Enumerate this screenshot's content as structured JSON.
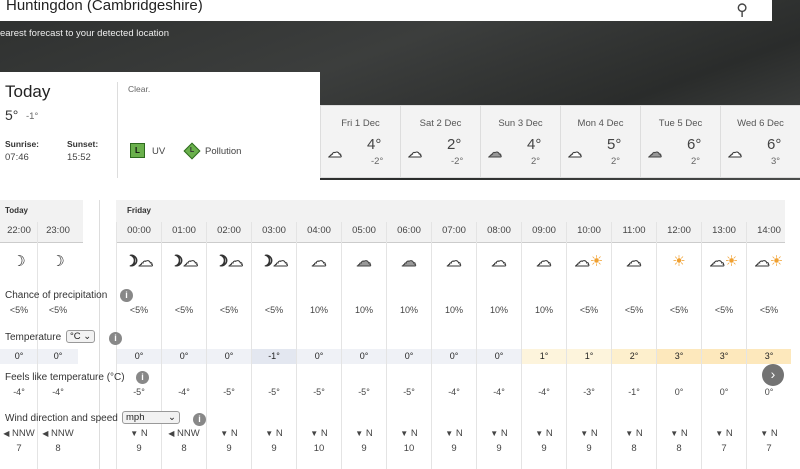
{
  "location": "Huntingdon (Cambridgeshire)",
  "nearest_text": "earest forecast to your detected location",
  "today": {
    "title": "Today",
    "high": "5°",
    "low": "-1°",
    "sunrise_label": "Sunrise:",
    "sunrise": "07:46",
    "sunset_label": "Sunset:",
    "sunset": "15:52",
    "summary": "Clear.",
    "uv_level": "L",
    "uv_label": "UV",
    "pollution_level": "L",
    "pollution_label": "Pollution",
    "uv_color": "#6ab04c"
  },
  "days": [
    {
      "date": "Fri 1 Dec",
      "high": "4°",
      "low": "-2°",
      "icon": "cloud"
    },
    {
      "date": "Sat 2 Dec",
      "high": "2°",
      "low": "-2°",
      "icon": "cloud"
    },
    {
      "date": "Sun 3 Dec",
      "high": "4°",
      "low": "2°",
      "icon": "grey-cloud"
    },
    {
      "date": "Mon 4 Dec",
      "high": "5°",
      "low": "2°",
      "icon": "cloud"
    },
    {
      "date": "Tue 5 Dec",
      "high": "6°",
      "low": "2°",
      "icon": "grey-cloud"
    },
    {
      "date": "Wed 6 Dec",
      "high": "6°",
      "low": "3°",
      "icon": "cloud"
    }
  ],
  "hourly": {
    "today_label": "Today",
    "next_label": "Friday",
    "precip_label": "Chance of precipitation",
    "temp_label": "Temperature",
    "temp_unit": "°C",
    "feels_label": "Feels like temperature (°C)",
    "wind_label": "Wind direction and speed",
    "wind_unit": "mph",
    "hours": [
      {
        "time": "22:00",
        "icon": "moon",
        "precip": "<5%",
        "temp": "0°",
        "feels": "-4°",
        "dir": "NNW",
        "speed": "7"
      },
      {
        "time": "23:00",
        "icon": "moon",
        "precip": "<5%",
        "temp": "0°",
        "feels": "-4°",
        "dir": "NNW",
        "speed": "8"
      },
      {
        "time": "00:00",
        "icon": "partly-cloudy-night",
        "precip": "<5%",
        "temp": "0°",
        "feels": "-5°",
        "dir": "N",
        "speed": "9"
      },
      {
        "time": "01:00",
        "icon": "partly-cloudy-night",
        "precip": "<5%",
        "temp": "0°",
        "feels": "-4°",
        "dir": "NNW",
        "speed": "8"
      },
      {
        "time": "02:00",
        "icon": "partly-cloudy-night",
        "precip": "<5%",
        "temp": "0°",
        "feels": "-5°",
        "dir": "N",
        "speed": "9"
      },
      {
        "time": "03:00",
        "icon": "partly-cloudy-night",
        "precip": "<5%",
        "temp": "-1°",
        "feels": "-5°",
        "dir": "N",
        "speed": "9"
      },
      {
        "time": "04:00",
        "icon": "cloud",
        "precip": "10%",
        "temp": "0°",
        "feels": "-5°",
        "dir": "N",
        "speed": "10"
      },
      {
        "time": "05:00",
        "icon": "grey-cloud",
        "precip": "10%",
        "temp": "0°",
        "feels": "-5°",
        "dir": "N",
        "speed": "9"
      },
      {
        "time": "06:00",
        "icon": "grey-cloud",
        "precip": "10%",
        "temp": "0°",
        "feels": "-5°",
        "dir": "N",
        "speed": "10"
      },
      {
        "time": "07:00",
        "icon": "cloud",
        "precip": "10%",
        "temp": "0°",
        "feels": "-4°",
        "dir": "N",
        "speed": "9"
      },
      {
        "time": "08:00",
        "icon": "cloud",
        "precip": "10%",
        "temp": "0°",
        "feels": "-4°",
        "dir": "N",
        "speed": "9"
      },
      {
        "time": "09:00",
        "icon": "cloud",
        "precip": "10%",
        "temp": "1°",
        "feels": "-4°",
        "dir": "N",
        "speed": "9"
      },
      {
        "time": "10:00",
        "icon": "sunny-intervals",
        "precip": "<5%",
        "temp": "1°",
        "feels": "-3°",
        "dir": "N",
        "speed": "9"
      },
      {
        "time": "11:00",
        "icon": "cloud",
        "precip": "<5%",
        "temp": "2°",
        "feels": "-1°",
        "dir": "N",
        "speed": "8"
      },
      {
        "time": "12:00",
        "icon": "sun",
        "precip": "<5%",
        "temp": "3°",
        "feels": "0°",
        "dir": "N",
        "speed": "8"
      },
      {
        "time": "13:00",
        "icon": "sunny-intervals",
        "precip": "<5%",
        "temp": "3°",
        "feels": "0°",
        "dir": "N",
        "speed": "7"
      },
      {
        "time": "14:00",
        "icon": "sunny-intervals",
        "precip": "<5%",
        "temp": "3°",
        "feels": "0°",
        "dir": "N",
        "speed": "7"
      }
    ]
  },
  "temp_colors": {
    "-1": "#e3e7f0",
    "0": "#eff1f6",
    "1": "#fdf4dc",
    "2": "#fdefcc",
    "3": "#fde8bc"
  }
}
